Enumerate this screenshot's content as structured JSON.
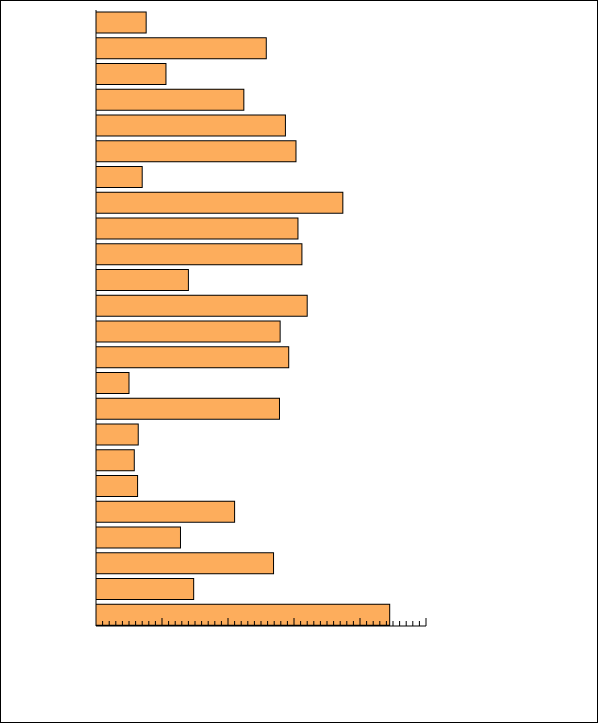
{
  "chart_data": {
    "type": "bar",
    "orientation": "horizontal",
    "values": [
      7.6,
      25.8,
      10.6,
      22.4,
      28.7,
      30.3,
      7.0,
      37.4,
      30.6,
      31.2,
      14.0,
      32.0,
      27.9,
      29.2,
      5.0,
      27.8,
      6.4,
      5.8,
      6.3,
      21.0,
      12.8,
      26.9,
      14.8,
      44.5
    ],
    "xlim": [
      0,
      50
    ],
    "major_tick_step": 10,
    "minor_tick_step": 1,
    "grid": false,
    "bar_color": "#fdad5c",
    "bar_edge_color": "#000000"
  }
}
